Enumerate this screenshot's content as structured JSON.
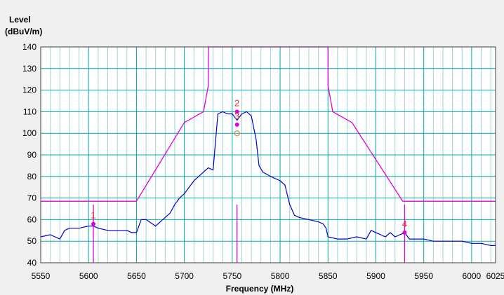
{
  "chart_data": {
    "type": "line",
    "ylabel_line1": "Level",
    "ylabel_line2": "(dBuV/m)",
    "xlabel": "Frequency (MHz)",
    "xlim": [
      5550,
      6025
    ],
    "ylim": [
      40,
      140
    ],
    "grid": true,
    "x_ticks": [
      5550,
      5600,
      5650,
      5700,
      5750,
      5800,
      5850,
      5900,
      5950,
      6000,
      6025
    ],
    "y_ticks": [
      40,
      50,
      60,
      70,
      80,
      90,
      100,
      110,
      120,
      130,
      140
    ],
    "colors": {
      "trace": "#0000cc",
      "limit": "#e000e0",
      "grid": "#00aaaa",
      "minor_grid": "#a0d4d4",
      "marker_label": "#e03030"
    },
    "series": [
      {
        "role": "measurement-trace",
        "x": [
          5550,
          5560,
          5570,
          5575,
          5580,
          5590,
          5600,
          5605,
          5610,
          5620,
          5630,
          5640,
          5645,
          5650,
          5655,
          5660,
          5670,
          5680,
          5685,
          5690,
          5695,
          5700,
          5710,
          5715,
          5720,
          5725,
          5730,
          5735,
          5740,
          5745,
          5750,
          5755,
          5760,
          5765,
          5770,
          5775,
          5778,
          5782,
          5790,
          5800,
          5805,
          5810,
          5815,
          5820,
          5830,
          5840,
          5845,
          5848,
          5850,
          5860,
          5870,
          5880,
          5890,
          5895,
          5900,
          5910,
          5915,
          5920,
          5925,
          5930,
          5935,
          5940,
          5950,
          5960,
          5970,
          5980,
          5990,
          6000,
          6010,
          6020,
          6025
        ],
        "y": [
          52,
          53,
          51,
          55,
          56,
          56,
          57,
          57,
          56,
          55,
          55,
          55,
          54,
          54,
          60,
          60,
          57,
          61,
          63,
          67,
          70,
          72,
          78,
          80,
          82,
          84,
          83,
          109,
          110,
          109,
          109,
          106,
          109,
          110,
          108,
          97,
          85,
          82,
          80,
          78,
          76,
          67,
          62,
          61,
          60,
          59,
          58,
          56,
          52,
          51,
          51,
          52,
          51,
          55,
          54,
          52,
          54,
          52,
          53,
          54,
          51,
          51,
          51,
          50,
          50,
          50,
          50,
          49,
          49,
          48,
          48
        ]
      },
      {
        "role": "limit-line",
        "x": [
          5550,
          5650,
          5700,
          5720,
          5725,
          5725,
          5850,
          5850,
          5855,
          5875,
          5928,
          6025
        ],
        "y": [
          68.5,
          68.5,
          105,
          110,
          122,
          140,
          140,
          122,
          110,
          105,
          68.5,
          68.5
        ]
      }
    ],
    "marker_lines": [
      5605,
      5755,
      5930
    ],
    "markers": [
      {
        "label": "1",
        "x": 5605,
        "y": 58
      },
      {
        "label": "2",
        "x": 5755,
        "y": 110
      },
      {
        "label": "3",
        "x": 5755,
        "y": 104
      },
      {
        "label": "4",
        "x": 5930,
        "y": 54
      }
    ],
    "open_marker": {
      "x": 5755,
      "y": 100
    }
  }
}
